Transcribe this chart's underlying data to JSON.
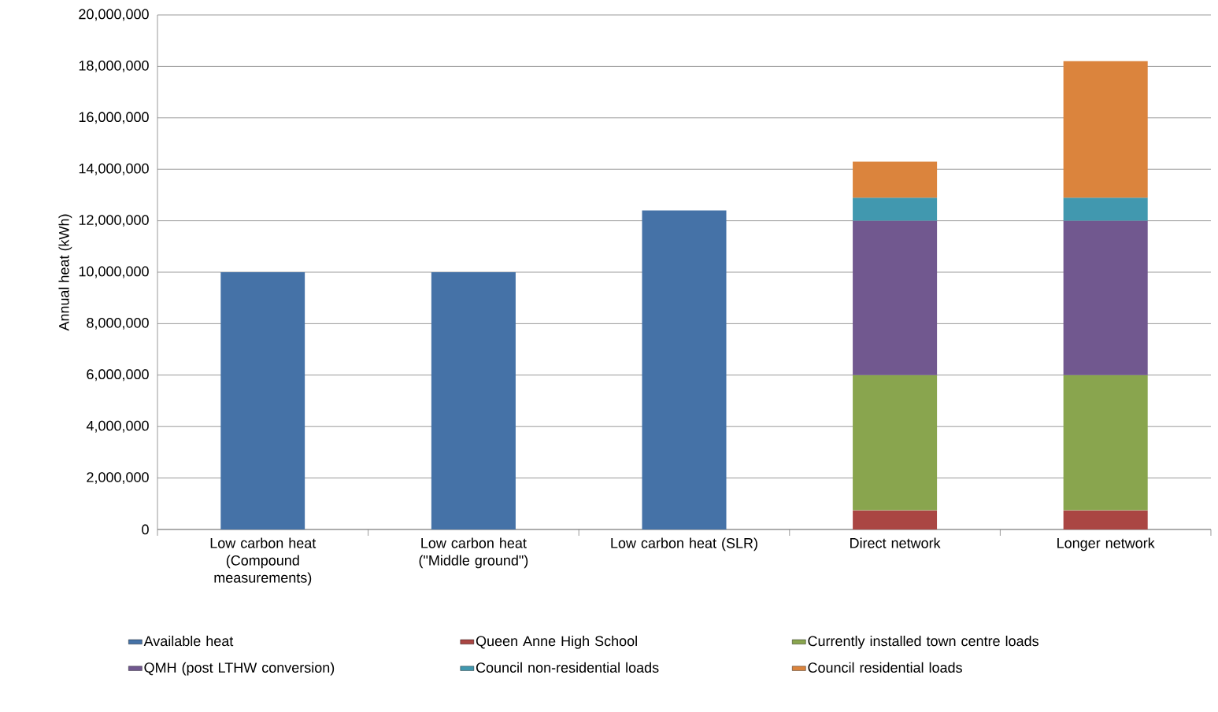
{
  "chart_data": {
    "type": "bar",
    "stacked": true,
    "ylabel": "Annual heat (kWh)",
    "categories": [
      "Low carbon heat (Compound measurements)",
      "Low carbon heat (\"Middle ground\")",
      "Low carbon heat (SLR)",
      "Direct network",
      "Longer network"
    ],
    "series": [
      {
        "name": "Available heat",
        "color": "#4572a7",
        "values": [
          10000000,
          10000000,
          12400000,
          null,
          null
        ]
      },
      {
        "name": "Queen Anne High School",
        "color": "#aa4643",
        "values": [
          null,
          null,
          null,
          750000,
          750000
        ]
      },
      {
        "name": "Currently installed town centre loads",
        "color": "#89a54e",
        "values": [
          null,
          null,
          null,
          5250000,
          5250000
        ]
      },
      {
        "name": "QMH (post LTHW conversion)",
        "color": "#71588f",
        "values": [
          null,
          null,
          null,
          6000000,
          6000000
        ]
      },
      {
        "name": "Council non-residential loads",
        "color": "#4198af",
        "values": [
          null,
          null,
          null,
          900000,
          900000
        ]
      },
      {
        "name": "Council residential loads",
        "color": "#db843d",
        "values": [
          null,
          null,
          null,
          1400000,
          5300000
        ]
      }
    ],
    "ylim": [
      0,
      20000000
    ],
    "yticks": [
      {
        "value": 0,
        "label": "0"
      },
      {
        "value": 2000000,
        "label": "2,000,000"
      },
      {
        "value": 4000000,
        "label": "4,000,000"
      },
      {
        "value": 6000000,
        "label": "6,000,000"
      },
      {
        "value": 8000000,
        "label": "8,000,000"
      },
      {
        "value": 10000000,
        "label": "10,000,000"
      },
      {
        "value": 12000000,
        "label": "12,000,000"
      },
      {
        "value": 14000000,
        "label": "14,000,000"
      },
      {
        "value": 16000000,
        "label": "16,000,000"
      },
      {
        "value": 18000000,
        "label": "18,000,000"
      },
      {
        "value": 20000000,
        "label": "20,000,000"
      }
    ],
    "grid": "y",
    "legend": "bottom"
  }
}
